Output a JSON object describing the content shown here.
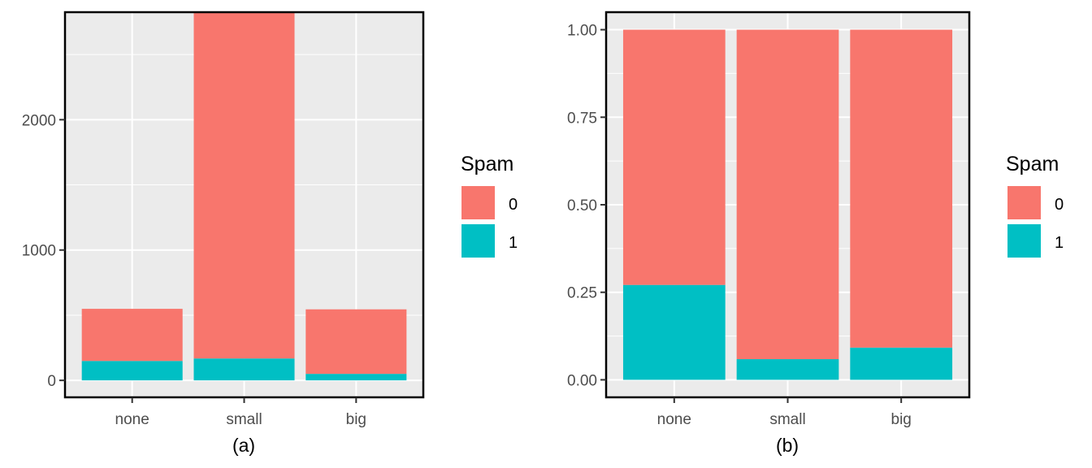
{
  "colors": {
    "panel_bg": "#EBEBEB",
    "grid": "#FFFFFF",
    "spam_0": "#F8766D",
    "spam_1": "#00BFC4",
    "axis_text": "#4D4D4D",
    "text": "#000000"
  },
  "chart_data": [
    {
      "type": "bar",
      "stacked": true,
      "caption": "(a)",
      "categories": [
        "none",
        "small",
        "big"
      ],
      "series": [
        {
          "name": "1",
          "values": [
            149,
            168,
            50
          ]
        },
        {
          "name": "0",
          "values": [
            400,
            2659,
            495
          ]
        }
      ],
      "ylim": [
        -130,
        2825
      ],
      "yticks": [
        0,
        1000,
        2000
      ],
      "ytick_labels": [
        "0",
        "1000",
        "2000"
      ],
      "xlabel": "",
      "ylabel": "",
      "grid": true,
      "legend": {
        "title": "Spam",
        "entries": [
          "0",
          "1"
        ],
        "position": "right"
      }
    },
    {
      "type": "bar",
      "stacked": true,
      "normalized": true,
      "caption": "(b)",
      "categories": [
        "none",
        "small",
        "big"
      ],
      "series": [
        {
          "name": "1",
          "values": [
            0.271,
            0.059,
            0.092
          ]
        },
        {
          "name": "0",
          "values": [
            0.729,
            0.941,
            0.908
          ]
        }
      ],
      "ylim": [
        -0.05,
        1.05
      ],
      "yticks": [
        0,
        0.25,
        0.5,
        0.75,
        1
      ],
      "ytick_labels": [
        "0.00",
        "0.25",
        "0.50",
        "0.75",
        "1.00"
      ],
      "xlabel": "",
      "ylabel": "",
      "grid": true,
      "legend": {
        "title": "Spam",
        "entries": [
          "0",
          "1"
        ],
        "position": "right"
      }
    }
  ]
}
